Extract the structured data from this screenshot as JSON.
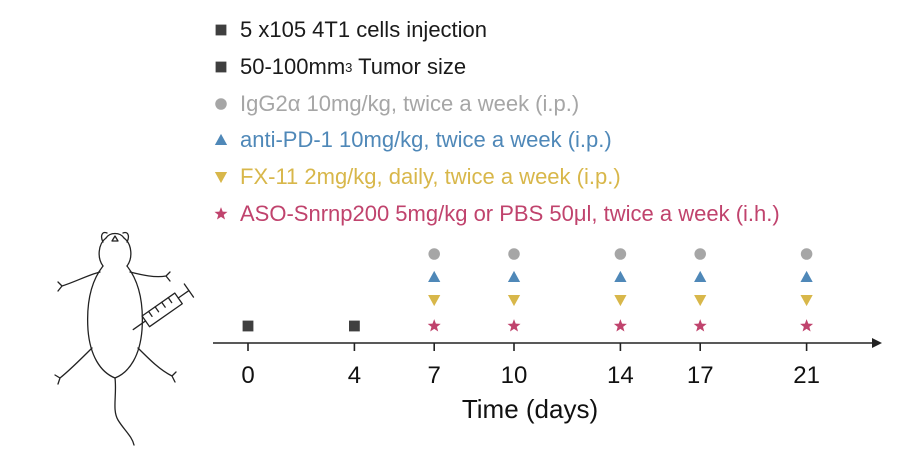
{
  "legend": [
    {
      "id": "injection",
      "marker": "square",
      "color": "#3f3f3f",
      "text": "5 x105 4T1 cells injection"
    },
    {
      "id": "tumor-size",
      "marker": "square",
      "color": "#3f3f3f",
      "text": "50-100mm",
      "sup": "3",
      "text_after": " Tumor size"
    },
    {
      "id": "igg2a",
      "marker": "circle",
      "color": "#a6a6a6",
      "text": "IgG2α 10mg/kg, twice a week (i.p.)"
    },
    {
      "id": "anti-pd1",
      "marker": "triangle-up",
      "color": "#4f88b8",
      "text": "anti-PD-1 10mg/kg, twice a week (i.p.)"
    },
    {
      "id": "fx11",
      "marker": "triangle-down",
      "color": "#d8b74a",
      "text": "FX-11 2mg/kg, daily, twice a week (i.p.)"
    },
    {
      "id": "aso",
      "marker": "star",
      "color": "#c0436d",
      "text": "ASO-Snrnp200 5mg/kg or PBS 50μl, twice a week (i.h.)"
    }
  ],
  "timeline": {
    "axis_label": "Time (days)",
    "ticks": [
      "0",
      "4",
      "7",
      "10",
      "14",
      "17",
      "21"
    ],
    "events": [
      {
        "day": "0",
        "markers": [
          "injection"
        ]
      },
      {
        "day": "4",
        "markers": [
          "tumor-size"
        ]
      },
      {
        "day": "7",
        "markers": [
          "igg2a",
          "anti-pd1",
          "fx11",
          "aso"
        ]
      },
      {
        "day": "10",
        "markers": [
          "igg2a",
          "anti-pd1",
          "fx11",
          "aso"
        ]
      },
      {
        "day": "14",
        "markers": [
          "igg2a",
          "anti-pd1",
          "fx11",
          "aso"
        ]
      },
      {
        "day": "17",
        "markers": [
          "igg2a",
          "anti-pd1",
          "fx11",
          "aso"
        ]
      },
      {
        "day": "21",
        "markers": [
          "igg2a",
          "anti-pd1",
          "fx11",
          "aso"
        ]
      }
    ]
  },
  "illustration": {
    "icon": "mouse-with-syringe-icon"
  }
}
